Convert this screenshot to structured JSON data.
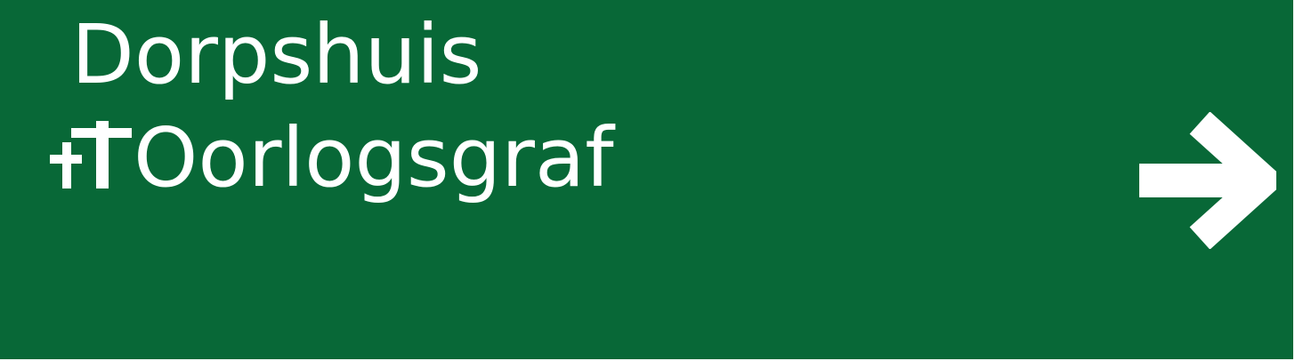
{
  "sign": {
    "background_color": "#086837",
    "text_color": "#ffffff",
    "destinations": [
      {
        "label": "Dorpshuis",
        "icon": ""
      },
      {
        "label": "Oorlogsgraf",
        "icon": "war-grave-cross-icon"
      }
    ],
    "direction_icon": "arrow-right-icon"
  }
}
